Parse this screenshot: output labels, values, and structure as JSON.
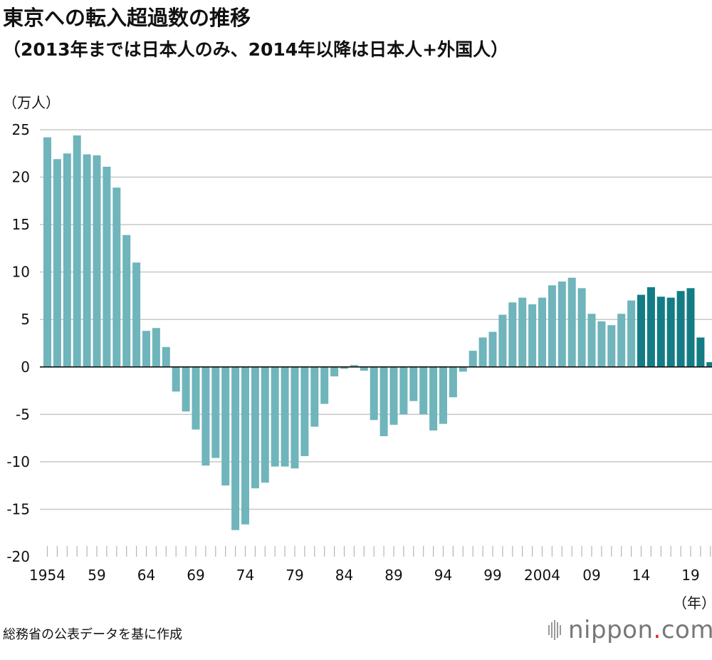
{
  "header": {
    "title": "東京への転入超過数の推移",
    "subtitle": "（2013年までは日本人のみ、2014年以降は日本人+外国人）"
  },
  "footer": {
    "source": "総務省の公表データを基に作成",
    "brand_name": "nippon",
    "brand_dot": ".",
    "brand_suffix": "com"
  },
  "colors": {
    "japanese_only": "#6fb5bb",
    "japanese_and_foreign": "#137c85",
    "grid": "#c8c8c8",
    "axis": "#111111"
  },
  "chart_data": {
    "type": "bar",
    "ylabel": "（万人）",
    "xlabel": "（年）",
    "ylim": [
      -20,
      25
    ],
    "y_ticks": [
      25,
      20,
      15,
      10,
      5,
      0,
      -5,
      -10,
      -15,
      -20
    ],
    "x_tick_labels": [
      {
        "year": 1954,
        "label": "1954"
      },
      {
        "year": 1959,
        "label": "59"
      },
      {
        "year": 1964,
        "label": "64"
      },
      {
        "year": 1969,
        "label": "69"
      },
      {
        "year": 1974,
        "label": "74"
      },
      {
        "year": 1979,
        "label": "79"
      },
      {
        "year": 1984,
        "label": "84"
      },
      {
        "year": 1989,
        "label": "89"
      },
      {
        "year": 1994,
        "label": "94"
      },
      {
        "year": 1999,
        "label": "99"
      },
      {
        "year": 2004,
        "label": "2004"
      },
      {
        "year": 2009,
        "label": "09"
      },
      {
        "year": 2014,
        "label": "14"
      },
      {
        "year": 2019,
        "label": "19"
      }
    ],
    "grid": true,
    "years": [
      1954,
      1955,
      1956,
      1957,
      1958,
      1959,
      1960,
      1961,
      1962,
      1963,
      1964,
      1965,
      1966,
      1967,
      1968,
      1969,
      1970,
      1971,
      1972,
      1973,
      1974,
      1975,
      1976,
      1977,
      1978,
      1979,
      1980,
      1981,
      1982,
      1983,
      1984,
      1985,
      1986,
      1987,
      1988,
      1989,
      1990,
      1991,
      1992,
      1993,
      1994,
      1995,
      1996,
      1997,
      1998,
      1999,
      2000,
      2001,
      2002,
      2003,
      2004,
      2005,
      2006,
      2007,
      2008,
      2009,
      2010,
      2011,
      2012,
      2013,
      2014,
      2015,
      2016,
      2017,
      2018,
      2019,
      2020,
      2021
    ],
    "values": [
      24.2,
      21.9,
      22.5,
      24.4,
      22.4,
      22.3,
      21.1,
      18.9,
      13.9,
      11.0,
      3.8,
      4.1,
      2.1,
      -2.6,
      -4.7,
      -6.6,
      -10.4,
      -9.6,
      -12.5,
      -17.2,
      -16.6,
      -12.8,
      -12.2,
      -10.5,
      -10.5,
      -10.7,
      -9.4,
      -6.3,
      -3.9,
      -1.0,
      -0.2,
      0.2,
      -0.4,
      -5.6,
      -7.3,
      -6.1,
      -5.0,
      -3.6,
      -5.0,
      -6.7,
      -6.0,
      -3.2,
      -0.5,
      1.7,
      3.1,
      3.7,
      5.5,
      6.8,
      7.3,
      6.6,
      7.3,
      8.6,
      9.0,
      9.4,
      8.3,
      5.6,
      4.8,
      4.4,
      5.6,
      7.0,
      7.6,
      8.4,
      7.4,
      7.3,
      8.0,
      8.3,
      3.1,
      0.5
    ],
    "series": [
      {
        "years": "1954–2013",
        "color": "#6fb5bb"
      },
      {
        "years": "2014–2021",
        "color": "#137c85"
      }
    ]
  }
}
